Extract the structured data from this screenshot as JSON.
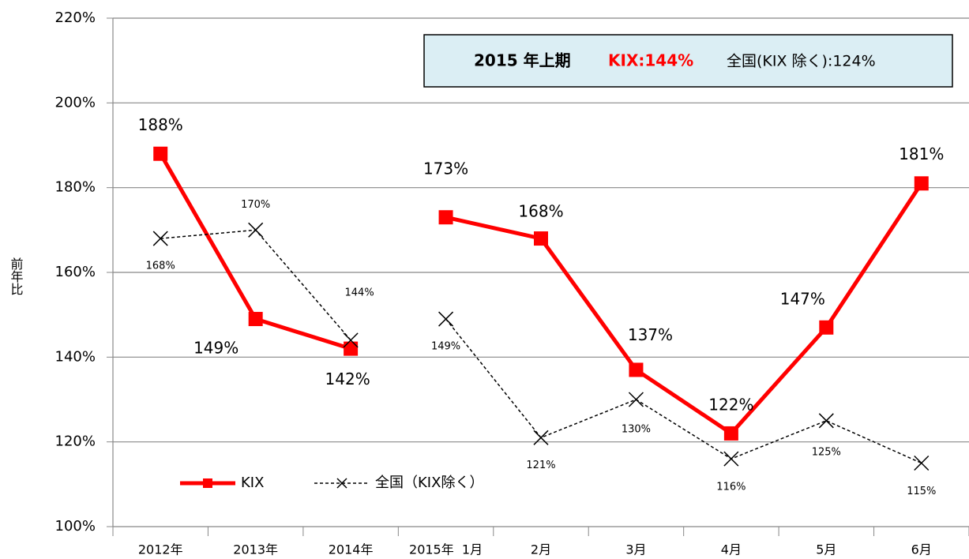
{
  "chart_data": {
    "type": "line",
    "y_label": "前年比",
    "annotation": {
      "period": "2015 年上期",
      "kix": "KIX:144%",
      "national": "全国(KIX 除く):124%"
    },
    "categories": [
      "2012年",
      "2013年",
      "2014年",
      "2015年  1月",
      "2月",
      "3月",
      "4月",
      "5月",
      "6月"
    ],
    "break_after": [
      2
    ],
    "series": [
      {
        "name": "KIX",
        "color": "#ff0000",
        "marker": "square",
        "values": [
          188,
          149,
          142,
          173,
          168,
          137,
          122,
          147,
          181
        ],
        "value_labels": [
          "188%",
          "149%",
          "142%",
          "173%",
          "168%",
          "137%",
          "122%",
          "147%",
          "181%"
        ]
      },
      {
        "name": "全国（KIX除く）",
        "color": "#000000",
        "marker": "x",
        "dashed": true,
        "values": [
          168,
          170,
          144,
          149,
          121,
          130,
          116,
          125,
          115
        ],
        "value_labels": [
          "168%",
          "170%",
          "144%",
          "149%",
          "121%",
          "130%",
          "116%",
          "125%",
          "115%"
        ]
      }
    ],
    "ylim": [
      100,
      220
    ],
    "yticks": [
      {
        "value": 100,
        "label": "100%"
      },
      {
        "value": 120,
        "label": "120%"
      },
      {
        "value": 140,
        "label": "140%"
      },
      {
        "value": 160,
        "label": "160%"
      },
      {
        "value": 180,
        "label": "180%"
      },
      {
        "value": 200,
        "label": "200%"
      },
      {
        "value": 220,
        "label": "220%"
      }
    ],
    "grid": true
  }
}
